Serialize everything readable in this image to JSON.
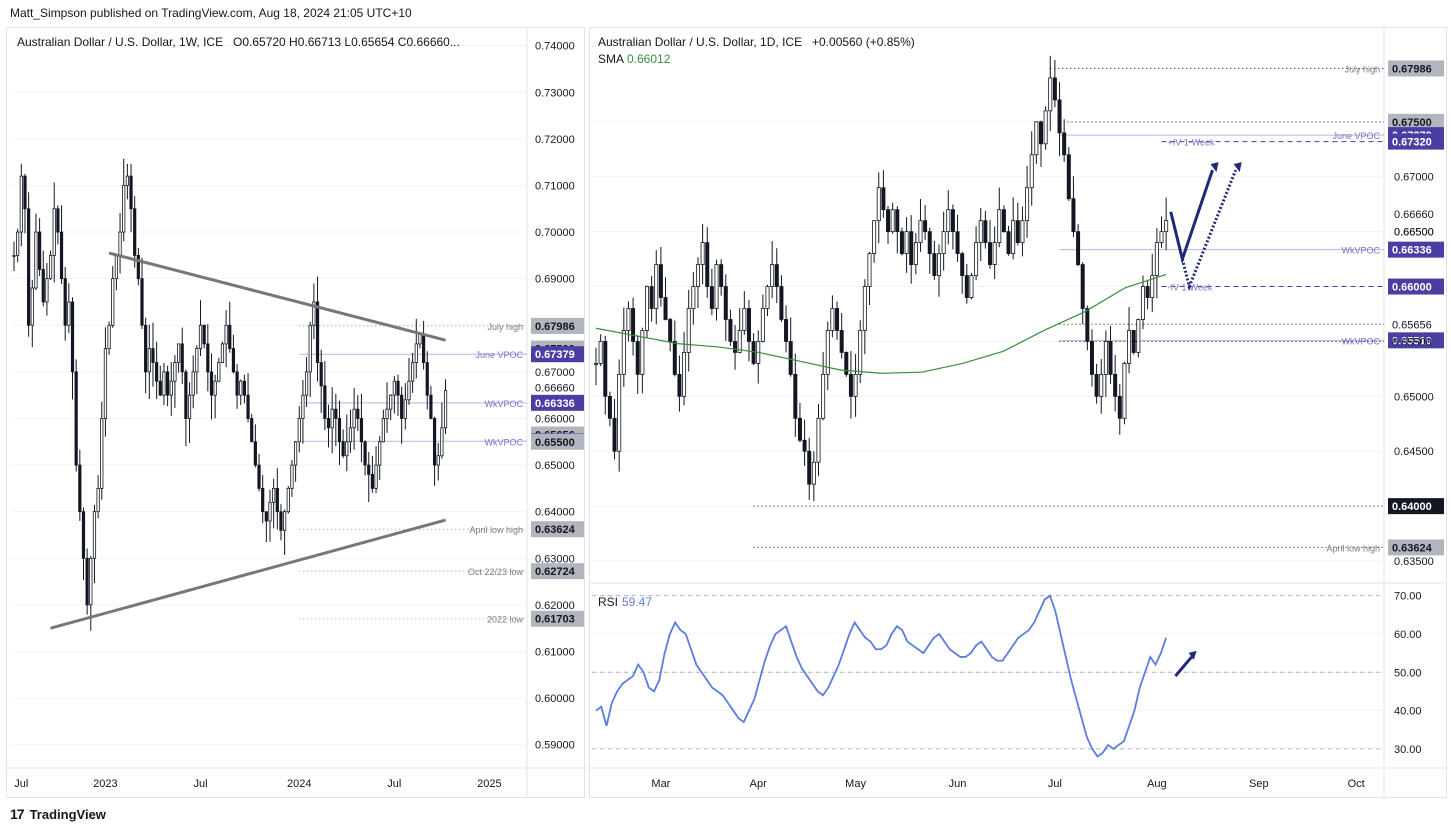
{
  "header": {
    "text": "Matt_Simpson published on TradingView.com, Aug 18, 2024 21:05 UTC+10"
  },
  "footer": {
    "brand": "TradingView",
    "logo": "tradingview-logo-icon"
  },
  "colors": {
    "candle": "#131722",
    "grid": "#f0f3fa",
    "sma": "#388e3c",
    "rsi": "#5b7ce0",
    "accent": "#4a3ea3",
    "label_gray": "#787b86",
    "trendline": "#777777",
    "arrow": "#1e2a78"
  },
  "chart_data": [
    {
      "type": "candlestick",
      "id": "weekly",
      "title": "Australian Dollar / U.S. Dollar, 1W, ICE",
      "ohlc_label": "O0.65720 H0.66713 L0.65654 C0.66660...",
      "ylim": [
        0.585,
        0.7425
      ],
      "y_ticks": [
        0.74,
        0.73,
        0.72,
        0.71,
        0.7,
        0.69,
        0.68,
        0.67,
        0.66,
        0.65,
        0.64,
        0.63,
        0.62,
        0.61,
        0.6,
        0.59
      ],
      "y_tick_labels": [
        "0.74000",
        "0.73000",
        "0.72000",
        "0.71000",
        "0.70000",
        "0.69000",
        "0.68000",
        "0.67000",
        "0.66000",
        "0.65000",
        "0.64000",
        "0.63000",
        "0.62000",
        "0.61000",
        "0.60000",
        "0.59000"
      ],
      "x_labels": [
        {
          "label": "Jul",
          "index": 2
        },
        {
          "label": "2023",
          "index": 25
        },
        {
          "label": "Jul",
          "index": 51
        },
        {
          "label": "2024",
          "index": 78
        },
        {
          "label": "Jul",
          "index": 104
        },
        {
          "label": "2025",
          "index": 130
        }
      ],
      "x_count": 140,
      "series": [
        0.695,
        0.7,
        0.712,
        0.705,
        0.68,
        0.688,
        0.7,
        0.692,
        0.685,
        0.69,
        0.695,
        0.705,
        0.7,
        0.69,
        0.68,
        0.685,
        0.67,
        0.65,
        0.64,
        0.63,
        0.62,
        0.63,
        0.64,
        0.645,
        0.66,
        0.675,
        0.68,
        0.69,
        0.695,
        0.7,
        0.71,
        0.712,
        0.705,
        0.695,
        0.69,
        0.68,
        0.67,
        0.675,
        0.672,
        0.668,
        0.665,
        0.67,
        0.665,
        0.668,
        0.672,
        0.676,
        0.67,
        0.66,
        0.665,
        0.67,
        0.675,
        0.68,
        0.676,
        0.67,
        0.665,
        0.668,
        0.672,
        0.676,
        0.68,
        0.675,
        0.67,
        0.665,
        0.668,
        0.665,
        0.66,
        0.655,
        0.65,
        0.645,
        0.64,
        0.638,
        0.642,
        0.645,
        0.64,
        0.636,
        0.64,
        0.645,
        0.65,
        0.655,
        0.66,
        0.665,
        0.67,
        0.68,
        0.685,
        0.672,
        0.667,
        0.66,
        0.658,
        0.662,
        0.66,
        0.655,
        0.652,
        0.655,
        0.658,
        0.662,
        0.66,
        0.655,
        0.65,
        0.648,
        0.645,
        0.65,
        0.655,
        0.66,
        0.662,
        0.665,
        0.668,
        0.665,
        0.66,
        0.664,
        0.668,
        0.672,
        0.676,
        0.678,
        0.672,
        0.665,
        0.66,
        0.65,
        0.652,
        0.658,
        0.666
      ],
      "levels": [
        {
          "label": "July high",
          "value": 0.67986,
          "tag": "0.67986",
          "style": "gray"
        },
        {
          "label": "",
          "value": 0.675,
          "tag": "0.67500",
          "style": "gray"
        },
        {
          "label": "June VPOC",
          "value": 0.67379,
          "tag": "0.67379",
          "style": "accent"
        },
        {
          "label": "WkVPOC",
          "value": 0.66336,
          "tag": "0.66336",
          "style": "accent"
        },
        {
          "label": "",
          "value": 0.6666,
          "tag": "0.66660",
          "style": "plain"
        },
        {
          "label": "",
          "value": 0.65656,
          "tag": "0.65656",
          "style": "gray"
        },
        {
          "label": "WkVPOC",
          "value": 0.6551,
          "tag": "0.65510",
          "style": "accent"
        },
        {
          "label": "",
          "value": 0.655,
          "tag": "0.65500",
          "style": "gray"
        },
        {
          "label": "April low high",
          "value": 0.63624,
          "tag": "0.63624",
          "style": "gray"
        },
        {
          "label": "Oct 22/23 low",
          "value": 0.62724,
          "tag": "0.62724",
          "style": "gray"
        },
        {
          "label": "2022 low",
          "value": 0.61703,
          "tag": "0.61703",
          "style": "gray"
        }
      ],
      "trendlines": [
        {
          "x0": 26,
          "y0": 0.6955,
          "x1": 118,
          "y1": 0.6768
        },
        {
          "x0": 10,
          "y0": 0.615,
          "x1": 118,
          "y1": 0.6382
        }
      ]
    },
    {
      "type": "candlestick",
      "id": "daily",
      "title": "Australian Dollar / U.S. Dollar, 1D, ICE",
      "change_label": "+0.00560 (+0.85%)",
      "sma_label": "SMA",
      "sma_value": "0.66012",
      "ylim": [
        0.633,
        0.683
      ],
      "y_ticks": [
        0.675,
        0.67,
        0.665,
        0.66,
        0.655,
        0.65,
        0.645,
        0.64,
        0.635
      ],
      "y_tick_labels": [
        "0.67500",
        "0.67000",
        "0.66500",
        "0.66000",
        "0.65500",
        "0.65000",
        "0.64500",
        "0.64000",
        "0.63500"
      ],
      "x_labels": [
        {
          "label": "Mar",
          "index": 14
        },
        {
          "label": "Apr",
          "index": 35
        },
        {
          "label": "May",
          "index": 56
        },
        {
          "label": "Jun",
          "index": 78
        },
        {
          "label": "Jul",
          "index": 99
        },
        {
          "label": "Aug",
          "index": 121
        },
        {
          "label": "Sep",
          "index": 143
        },
        {
          "label": "Oct",
          "index": 164
        }
      ],
      "x_count": 170,
      "series": [
        0.653,
        0.655,
        0.65,
        0.648,
        0.645,
        0.652,
        0.656,
        0.658,
        0.655,
        0.652,
        0.656,
        0.66,
        0.658,
        0.662,
        0.659,
        0.657,
        0.655,
        0.652,
        0.65,
        0.654,
        0.658,
        0.66,
        0.662,
        0.664,
        0.66,
        0.658,
        0.662,
        0.66,
        0.657,
        0.655,
        0.654,
        0.656,
        0.658,
        0.655,
        0.653,
        0.655,
        0.658,
        0.66,
        0.662,
        0.66,
        0.657,
        0.655,
        0.652,
        0.648,
        0.646,
        0.645,
        0.642,
        0.644,
        0.648,
        0.652,
        0.656,
        0.658,
        0.656,
        0.654,
        0.652,
        0.65,
        0.652,
        0.656,
        0.66,
        0.663,
        0.666,
        0.669,
        0.667,
        0.665,
        0.667,
        0.665,
        0.663,
        0.665,
        0.662,
        0.664,
        0.666,
        0.665,
        0.663,
        0.661,
        0.663,
        0.665,
        0.667,
        0.665,
        0.663,
        0.661,
        0.659,
        0.661,
        0.664,
        0.666,
        0.664,
        0.662,
        0.664,
        0.667,
        0.665,
        0.663,
        0.666,
        0.664,
        0.666,
        0.669,
        0.672,
        0.675,
        0.673,
        0.676,
        0.679,
        0.677,
        0.674,
        0.672,
        0.668,
        0.665,
        0.662,
        0.658,
        0.655,
        0.652,
        0.65,
        0.652,
        0.655,
        0.652,
        0.65,
        0.648,
        0.653,
        0.656,
        0.654,
        0.657,
        0.66,
        0.659,
        0.661,
        0.664,
        0.665,
        0.666
      ],
      "sma": [
        0.6562,
        0.6555,
        0.6548,
        0.6545,
        0.654,
        0.6532,
        0.6524,
        0.6521,
        0.6522,
        0.653,
        0.6541,
        0.656,
        0.6577,
        0.6599,
        0.6611
      ],
      "levels": [
        {
          "label": "July high",
          "value": 0.67986,
          "tag": "0.67986",
          "style": "gray"
        },
        {
          "label": "",
          "value": 0.675,
          "tag": "0.67500",
          "style": "gray"
        },
        {
          "label": "June VPOC",
          "value": 0.67379,
          "tag": "0.67379",
          "style": "accent"
        },
        {
          "label": "+IV 1-Week",
          "value": 0.6732,
          "tag": "0.67320",
          "style": "accent"
        },
        {
          "label": "WkVPOC",
          "value": 0.66336,
          "tag": "0.66336",
          "style": "accent"
        },
        {
          "label": "-IV 1-Week",
          "value": 0.66,
          "tag": "0.66000",
          "style": "accent"
        },
        {
          "label": "",
          "value": 0.65656,
          "tag": "0.65656",
          "style": "plain"
        },
        {
          "label": "WkVPOC",
          "value": 0.6551,
          "tag": "0.65510",
          "style": "accent"
        },
        {
          "label": "",
          "value": 0.655,
          "tag": "0.65500",
          "style": "plain"
        },
        {
          "label": "",
          "value": 0.64,
          "tag": "0.64000",
          "style": "dark"
        },
        {
          "label": "April low high",
          "value": 0.63624,
          "tag": "0.63624",
          "style": "gray"
        }
      ],
      "right_plain_ticks": [
        "0.66660",
        "0.66500"
      ]
    },
    {
      "type": "line",
      "id": "rsi",
      "title": "RSI",
      "value_label": "59.47",
      "ylim": [
        25,
        72
      ],
      "y_ticks": [
        70,
        60,
        50,
        40,
        30
      ],
      "y_tick_labels": [
        "70.00",
        "60.00",
        "50.00",
        "40.00",
        "30.00"
      ],
      "x_count": 170,
      "values": [
        40,
        41,
        36,
        42,
        45,
        47,
        48,
        49,
        52,
        50,
        46,
        45,
        48,
        55,
        60,
        63,
        61,
        60,
        56,
        52,
        50,
        48,
        46,
        45,
        44,
        42,
        40,
        38,
        37,
        40,
        43,
        48,
        53,
        57,
        60,
        61,
        62,
        58,
        54,
        51,
        49,
        47,
        45,
        44,
        46,
        49,
        52,
        56,
        60,
        63,
        61,
        59,
        58,
        56,
        56,
        57,
        60,
        62,
        61,
        58,
        57,
        56,
        55,
        57,
        59,
        60,
        58,
        56,
        55,
        54,
        54,
        55,
        57,
        58,
        56,
        54,
        53,
        53,
        55,
        57,
        59,
        60,
        61,
        63,
        66,
        69,
        70,
        66,
        60,
        54,
        48,
        43,
        38,
        33,
        30,
        28,
        29,
        31,
        30,
        31,
        32,
        36,
        40,
        46,
        50,
        54,
        52,
        55,
        59
      ]
    }
  ]
}
